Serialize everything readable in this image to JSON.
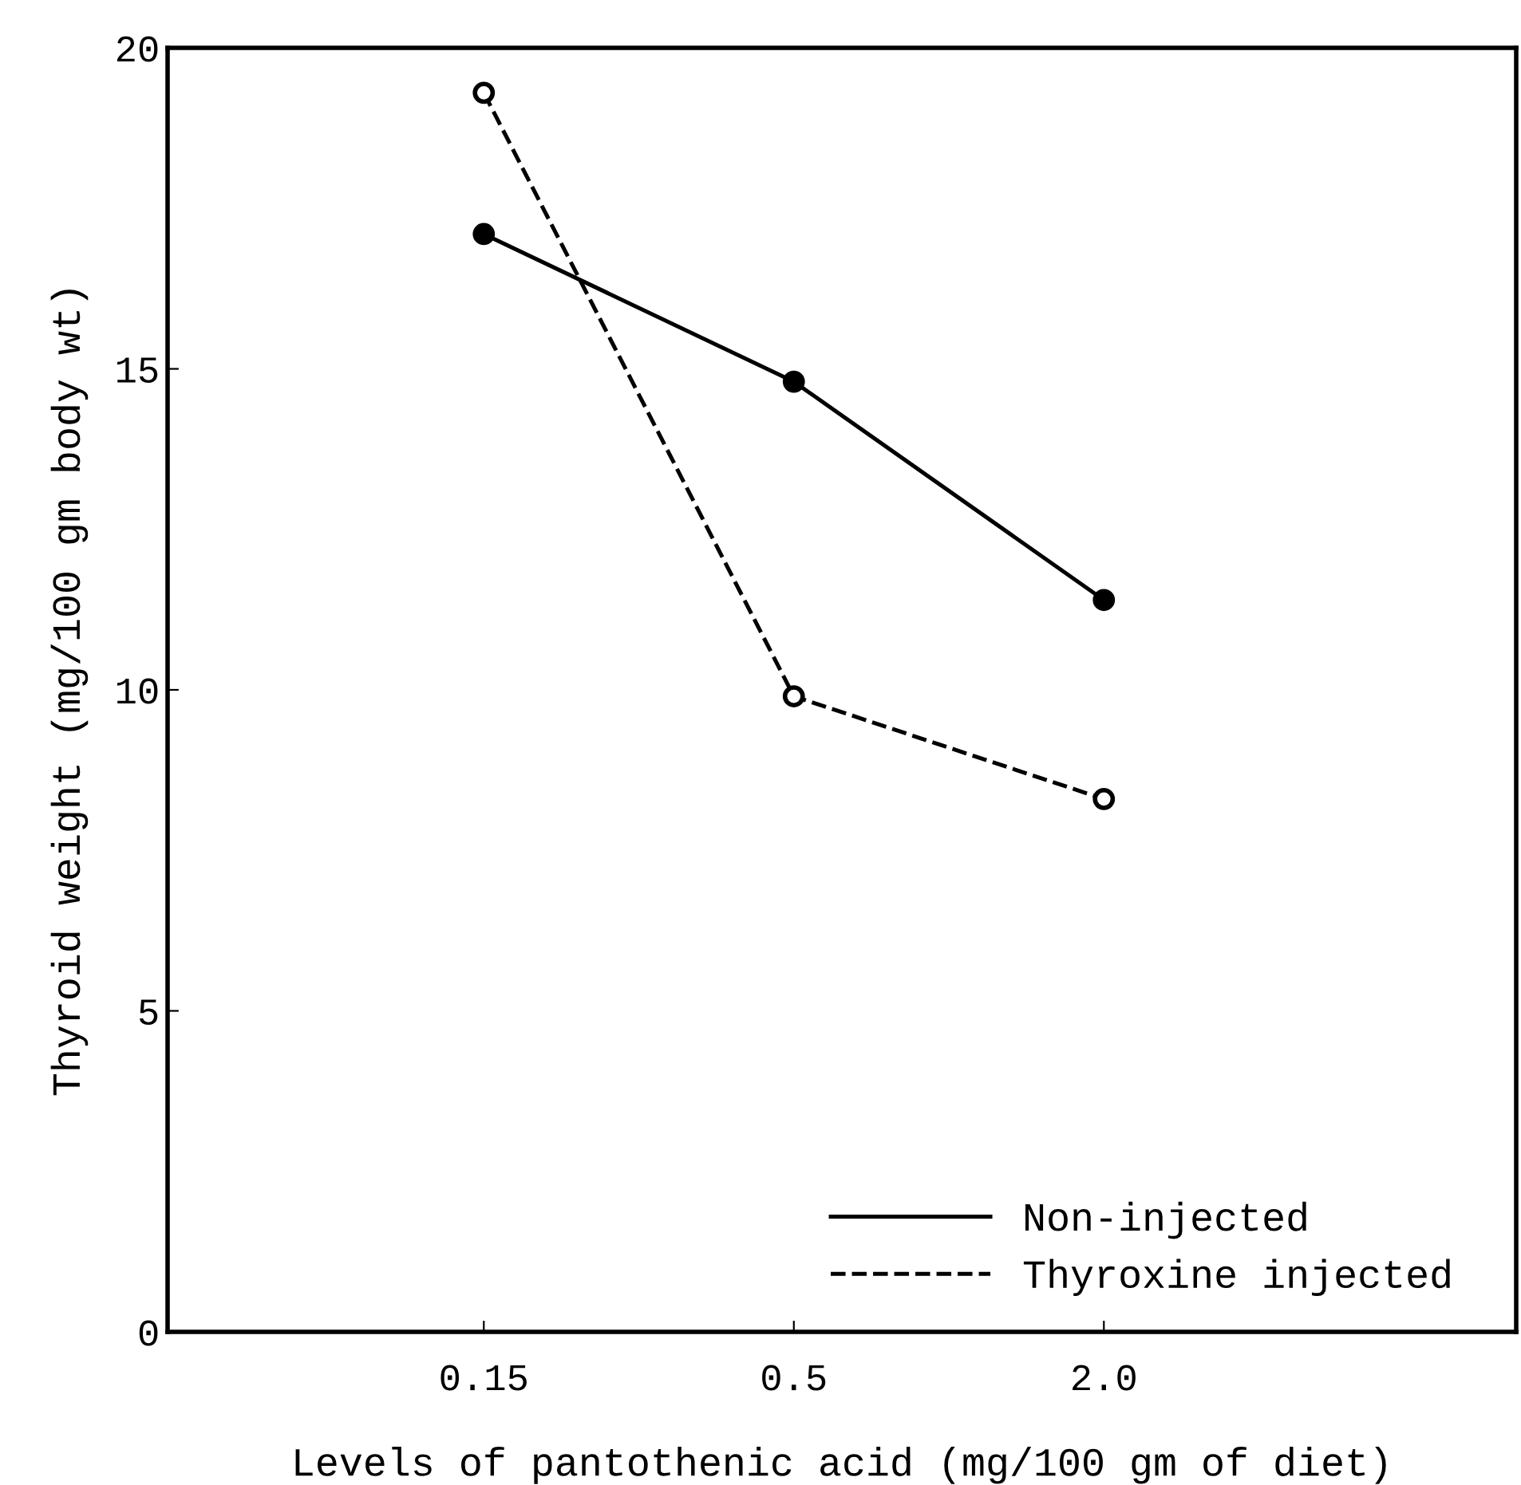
{
  "chart_data": {
    "type": "line",
    "xlabel": "Levels of pantothenic acid (mg/100 gm of diet)",
    "ylabel": "Thyroid weight (mg/100 gm body wt)",
    "categories": [
      "0.15",
      "0.5",
      "2.0"
    ],
    "series": [
      {
        "name": "Non-injected",
        "color": "#000000",
        "line_style": "solid",
        "marker": "circle",
        "values": [
          17.1,
          14.8,
          11.4
        ]
      },
      {
        "name": "Thyroxine injected",
        "color": "#000000",
        "line_style": "dashed",
        "marker": "circle",
        "values": [
          19.3,
          9.9,
          8.3
        ]
      }
    ],
    "ylim": [
      0,
      20
    ],
    "yticks": [
      0,
      5,
      10,
      15,
      20
    ],
    "grid": false,
    "legend": "bottom right"
  }
}
